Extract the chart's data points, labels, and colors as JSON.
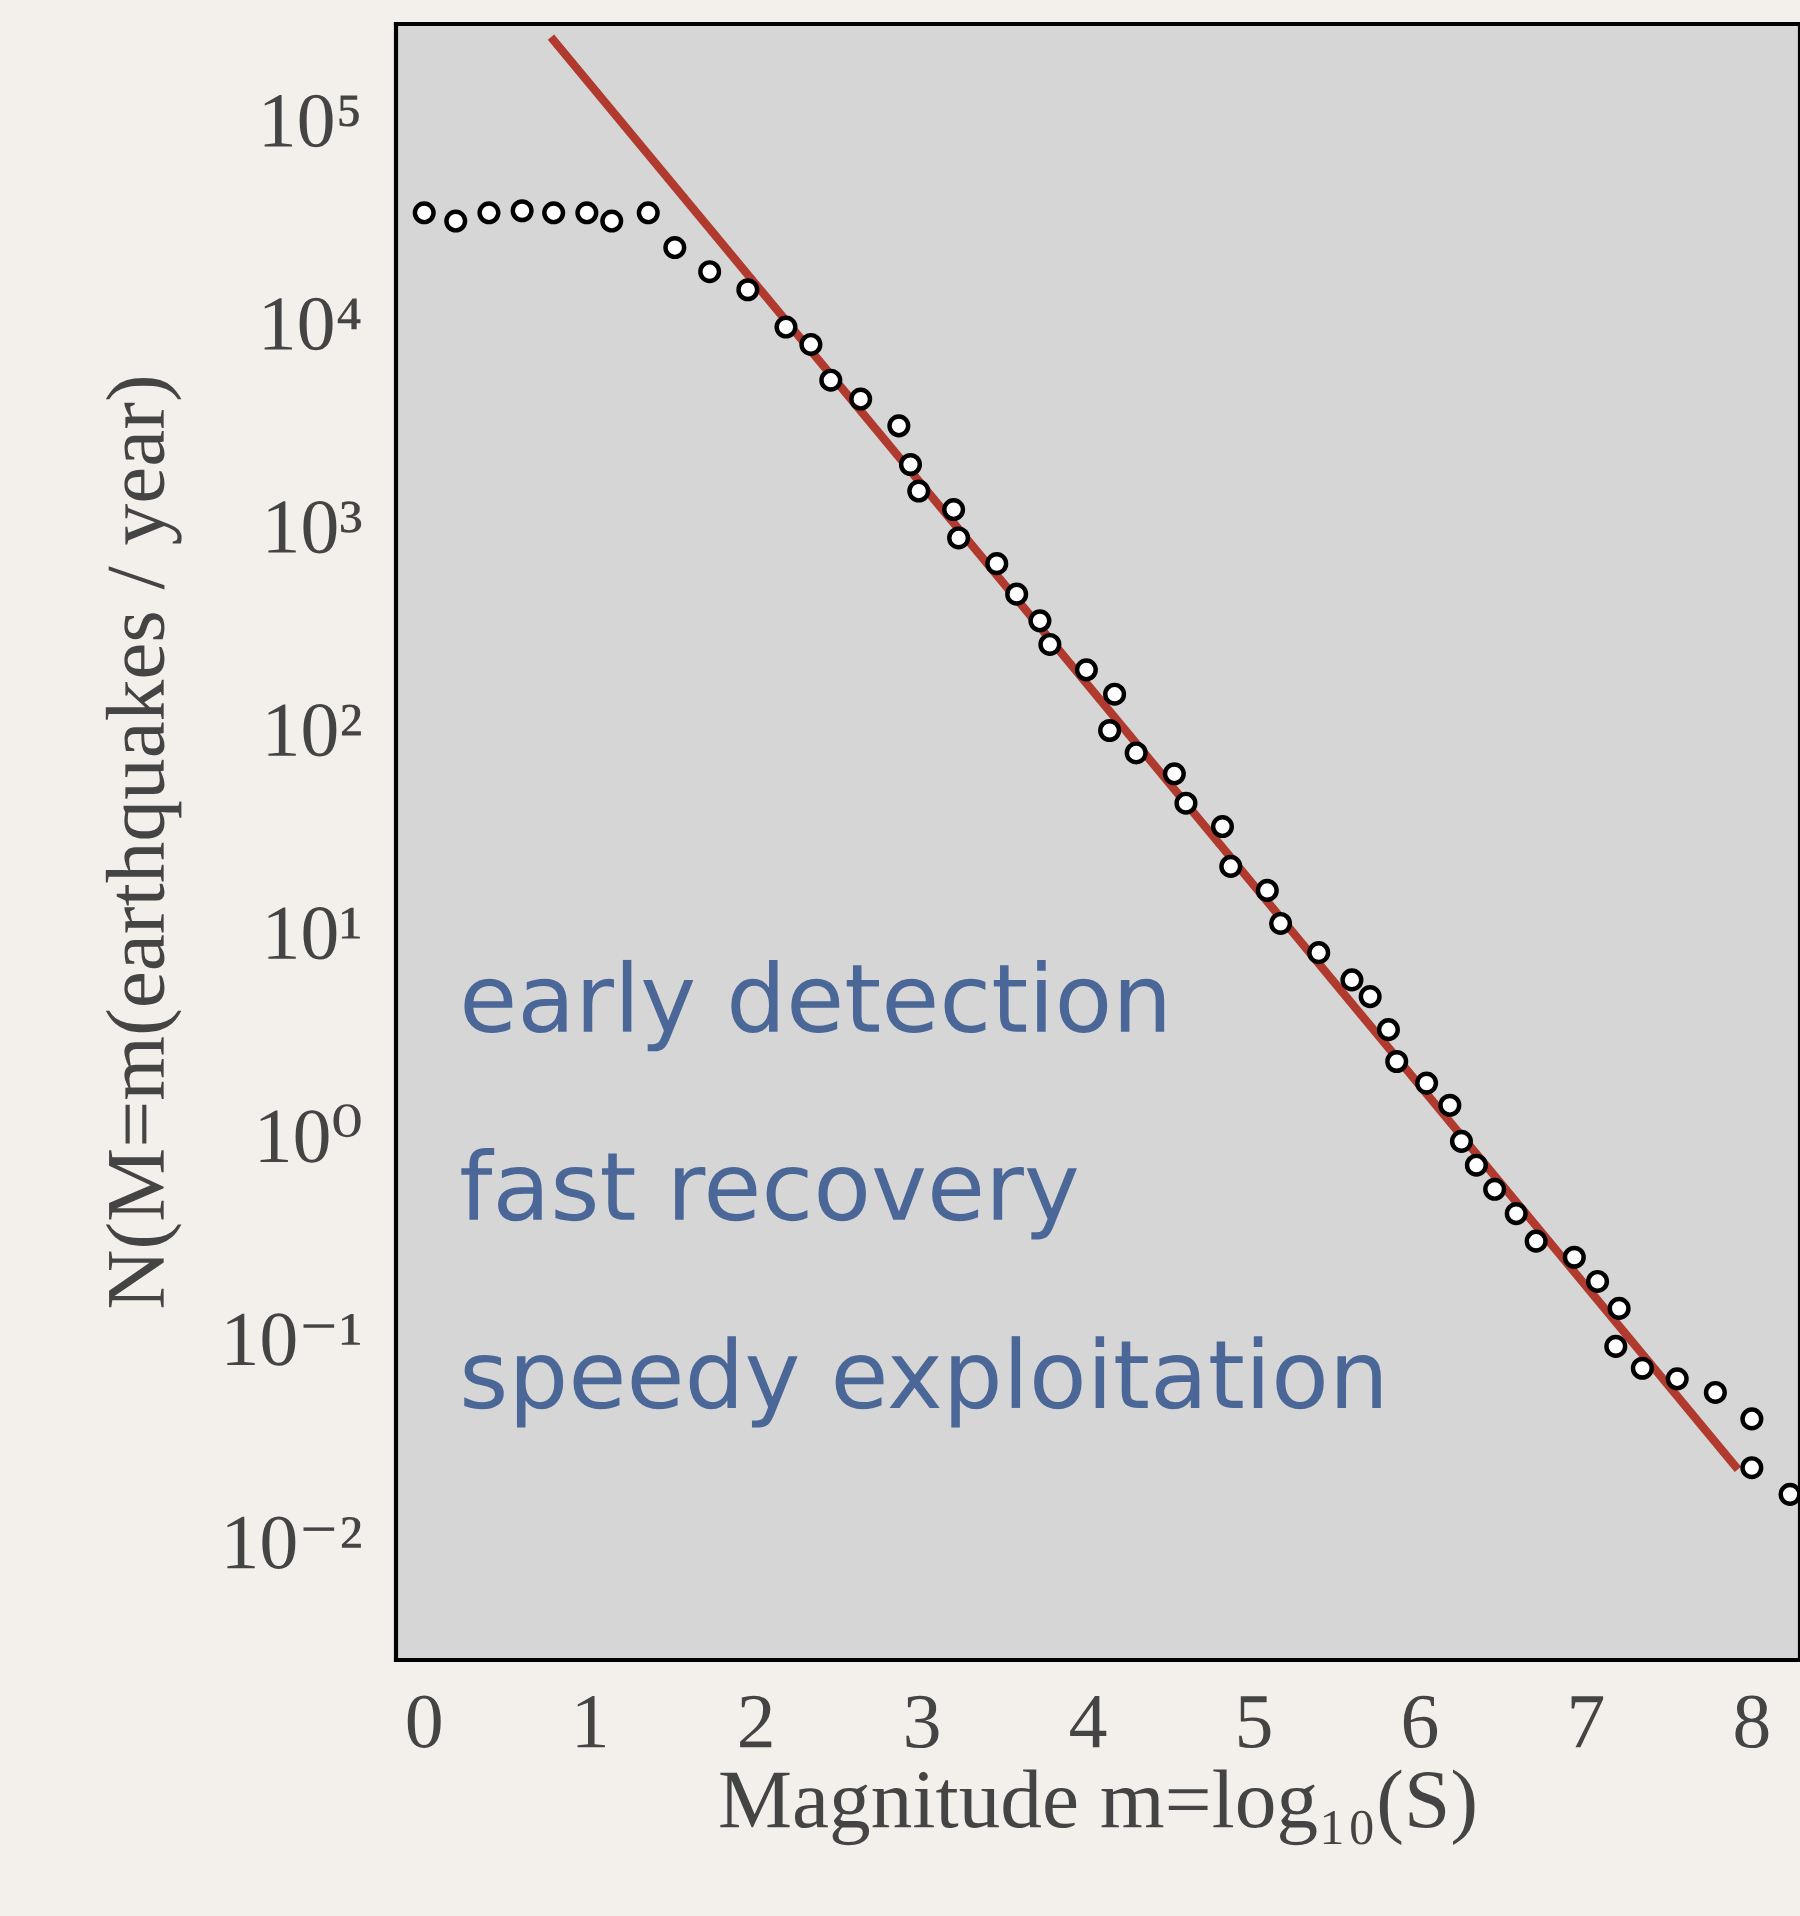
{
  "chart_data": {
    "type": "scatter",
    "xlabel": "Magnitude m=log₁₀(S)",
    "ylabel": "N(M=m(earthquakes / year)",
    "log": "y",
    "xlim": [
      -0.17,
      8.29
    ],
    "ylim": [
      0.0026,
      295000
    ],
    "xticks": [
      0,
      1,
      2,
      3,
      4,
      5,
      6,
      7,
      8
    ],
    "yticks": [
      {
        "value": 100000,
        "label": "10⁵"
      },
      {
        "value": 10000,
        "label": "10⁴"
      },
      {
        "value": 1000,
        "label": "10³"
      },
      {
        "value": 100,
        "label": "10²"
      },
      {
        "value": 10,
        "label": "10¹"
      },
      {
        "value": 1,
        "label": "10⁰"
      },
      {
        "value": 0.1,
        "label": "10⁻¹"
      },
      {
        "value": 0.01,
        "label": "10⁻²"
      }
    ],
    "grid": false,
    "marker": "circle",
    "series": [
      {
        "color": "#ffffff",
        "x": [
          0,
          0.19,
          0.39,
          0.59,
          0.78,
          0.98,
          1.13,
          1.35,
          1.51,
          1.72,
          1.95,
          2.18,
          2.33,
          2.45,
          2.63,
          2.86,
          2.93,
          2.98,
          3.19,
          3.22,
          3.45,
          3.57,
          3.71,
          3.77,
          3.99,
          4.16,
          4.13,
          4.29,
          4.52,
          4.59,
          4.81,
          4.86,
          5.08,
          5.16,
          5.39,
          5.59,
          5.7,
          5.81,
          5.86,
          6.04,
          6.18,
          6.25,
          6.34,
          6.45,
          6.58,
          6.7,
          6.93,
          7.07,
          7.2,
          7.18,
          7.34,
          7.55,
          7.78,
          8.0,
          8.0,
          8.23
        ],
        "values": [
          34700,
          31600,
          34700,
          35500,
          34700,
          34700,
          31600,
          34700,
          23400,
          17800,
          14500,
          9500,
          7800,
          5200,
          4200,
          3100,
          2000,
          1480,
          1200,
          870,
          650,
          460,
          340,
          260,
          195,
          148,
          98,
          76,
          60,
          43,
          33,
          21,
          16,
          11,
          7.9,
          5.8,
          4.8,
          3.3,
          2.3,
          1.8,
          1.4,
          0.93,
          0.71,
          0.54,
          0.41,
          0.3,
          0.25,
          0.19,
          0.14,
          0.091,
          0.071,
          0.063,
          0.054,
          0.04,
          0.023,
          0.017
        ]
      },
      {
        "type": "line",
        "color": "#b03a2e",
        "x": [
          0.78,
          7.9
        ],
        "values": [
          245000,
          0.0234
        ],
        "marker": "none",
        "line_style": "solid"
      }
    ],
    "annotations": [
      "early detection",
      "fast recovery",
      "speedy exploitation"
    ]
  }
}
